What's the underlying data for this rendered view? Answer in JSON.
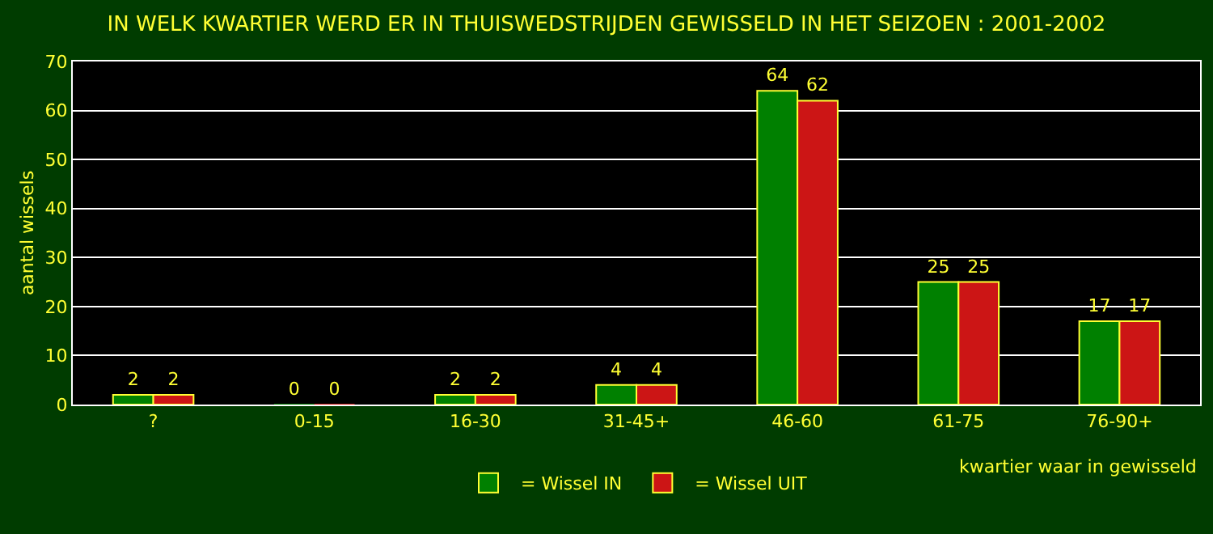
{
  "chart_data": {
    "type": "bar",
    "title": "IN WELK KWARTIER WERD ER IN THUISWEDSTRIJDEN GEWISSELD IN HET SEIZOEN : 2001-2002",
    "xlabel": "kwartier waar in gewisseld",
    "ylabel": "aantal wissels",
    "categories": [
      "?",
      "0-15",
      "16-30",
      "31-45+",
      "46-60",
      "61-75",
      "76-90+"
    ],
    "series": [
      {
        "name": "= Wissel IN",
        "color": "#008000",
        "values": [
          2,
          0,
          2,
          4,
          64,
          25,
          17
        ]
      },
      {
        "name": "= Wissel UIT",
        "color": "#cc1515",
        "values": [
          2,
          0,
          2,
          4,
          62,
          25,
          17
        ]
      }
    ],
    "ylim": [
      0,
      70
    ],
    "yticks": [
      0,
      10,
      20,
      30,
      40,
      50,
      60,
      70
    ],
    "grid": "y",
    "legend": "bottom",
    "data_labels": true
  }
}
